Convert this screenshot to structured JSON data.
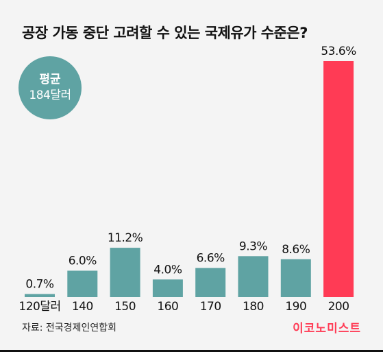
{
  "title": "공장 가동 중단 고려할 수 있는 국제유가 수준은?",
  "average_badge": {
    "label": "평균",
    "value": "184달러"
  },
  "source": "자료: 전국경제인연합회",
  "brand": "이코노미스트",
  "colors": {
    "bar": "#5fa3a3",
    "highlight": "#ff3b55",
    "badge": "#5fa3a3",
    "background": "#f4f4f4"
  },
  "chart_data": {
    "type": "bar",
    "categories": [
      "120달러",
      "140",
      "150",
      "160",
      "170",
      "180",
      "190",
      "200"
    ],
    "values": [
      0.7,
      6.0,
      11.2,
      4.0,
      6.6,
      9.3,
      8.6,
      53.6
    ],
    "value_labels": [
      "0.7%",
      "6.0%",
      "11.2%",
      "4.0%",
      "6.6%",
      "9.3%",
      "8.6%",
      "53.6%"
    ],
    "highlight_category": "200",
    "ylim": [
      0,
      53.6
    ],
    "grid": false,
    "title": "공장 가동 중단 고려할 수 있는 국제유가 수준은?"
  }
}
